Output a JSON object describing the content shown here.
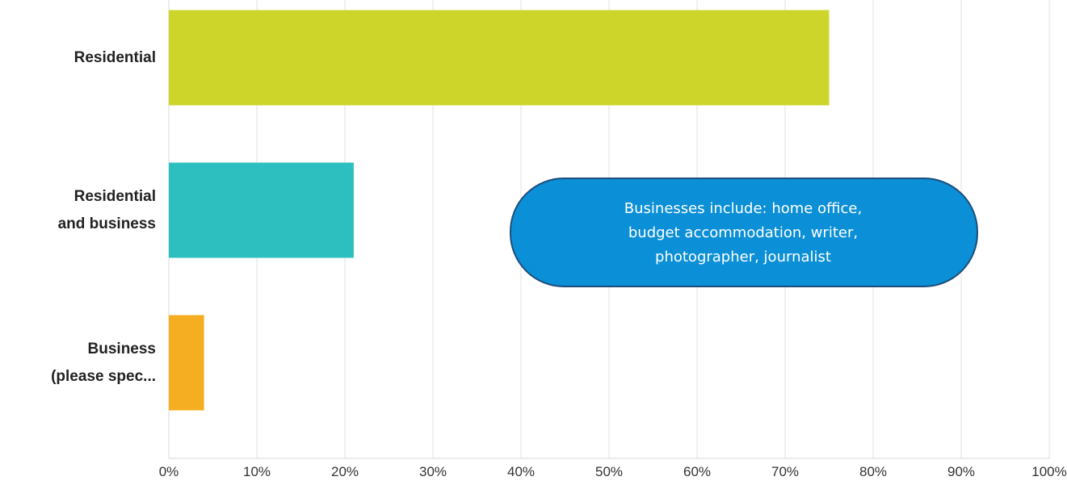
{
  "chart_data": {
    "type": "bar",
    "orientation": "horizontal",
    "categories": [
      "Residential",
      "Residential\nand business",
      "Business\n(please spec..."
    ],
    "values": [
      75,
      21,
      4
    ],
    "colors": [
      "#cdd52a",
      "#2dbfbf",
      "#f5ad21"
    ],
    "xlim": [
      0,
      100
    ],
    "xticks": [
      {
        "value": 0,
        "label": "0%"
      },
      {
        "value": 10,
        "label": "10%"
      },
      {
        "value": 20,
        "label": "20%"
      },
      {
        "value": 30,
        "label": "30%"
      },
      {
        "value": 40,
        "label": "40%"
      },
      {
        "value": 50,
        "label": "50%"
      },
      {
        "value": 60,
        "label": "60%"
      },
      {
        "value": 70,
        "label": "70%"
      },
      {
        "value": 80,
        "label": "80%"
      },
      {
        "value": 90,
        "label": "90%"
      },
      {
        "value": 100,
        "label": "100%"
      }
    ],
    "grid": true,
    "annotation": "Businesses include: home office,\nbudget accommodation, writer,\nphotographer, journalist"
  }
}
